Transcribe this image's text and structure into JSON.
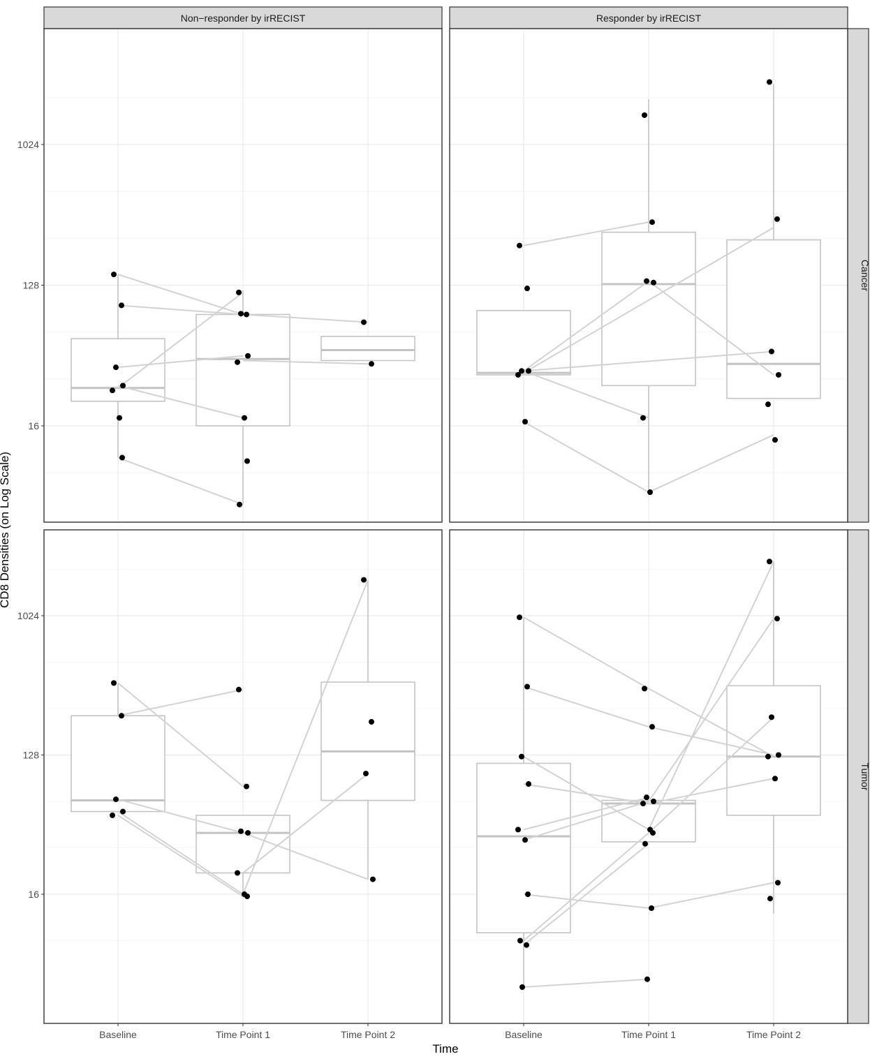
{
  "chart_data": {
    "type": "boxplot-faceted",
    "xlabel": "Time",
    "ylabel": "CD8 Densities (on Log Scale)",
    "y_scale": "log2",
    "ylim": [
      4,
      3200
    ],
    "y_ticks": [
      16,
      128,
      1024
    ],
    "categories": [
      "Baseline",
      "Time Point 1",
      "Time Point 2"
    ],
    "facet_columns": [
      "Non−responder by irRECIST",
      "Responder by irRECIST"
    ],
    "facet_rows": [
      "Cancer",
      "Tumor"
    ],
    "panels": [
      {
        "column": "Non−responder by irRECIST",
        "row": "Cancer",
        "boxes": [
          {
            "category": "Baseline",
            "q1": 23,
            "median": 28,
            "q3": 58,
            "whisker_low": 10,
            "whisker_high": 150
          },
          {
            "category": "Time Point 1",
            "q1": 16,
            "median": 43,
            "q3": 83,
            "whisker_low": 5,
            "whisker_high": 118
          },
          {
            "category": "Time Point 2",
            "q1": 42,
            "median": 49,
            "q3": 60,
            "whisker_low": 42,
            "whisker_high": 60
          }
        ],
        "points": [
          {
            "category": "Baseline",
            "values": [
              150,
              95,
              38,
              29,
              27,
              18,
              10
            ]
          },
          {
            "category": "Time Point 1",
            "values": [
              115,
              83,
              84,
              45,
              41,
              18,
              9.5,
              5
            ]
          },
          {
            "category": "Time Point 2",
            "values": [
              74,
              40
            ]
          }
        ],
        "paired_lines": [
          [
            "Baseline",
            150,
            "Time Point 1",
            83
          ],
          [
            "Baseline",
            95,
            "Time Point 1",
            83
          ],
          [
            "Baseline",
            38,
            "Time Point 1",
            45
          ],
          [
            "Baseline",
            29,
            "Time Point 1",
            18
          ],
          [
            "Baseline",
            28,
            "Time Point 1",
            115
          ],
          [
            "Baseline",
            10,
            "Time Point 1",
            5
          ],
          [
            "Time Point 1",
            83,
            "Time Point 2",
            74
          ],
          [
            "Time Point 1",
            42,
            "Time Point 2",
            40
          ]
        ]
      },
      {
        "column": "Responder by irRECIST",
        "row": "Cancer",
        "boxes": [
          {
            "category": "Baseline",
            "q1": 34,
            "median": 35,
            "q3": 88,
            "whisker_low": 34,
            "whisker_high": 88
          },
          {
            "category": "Time Point 1",
            "q1": 29,
            "median": 130,
            "q3": 280,
            "whisker_low": 6,
            "whisker_high": 2000
          },
          {
            "category": "Time Point 2",
            "q1": 24,
            "median": 40,
            "q3": 250,
            "whisker_low": 24,
            "whisker_high": 2500
          }
        ],
        "points": [
          {
            "category": "Baseline",
            "values": [
              230,
              122,
              36,
              36,
              34,
              17
            ]
          },
          {
            "category": "Time Point 1",
            "values": [
              1580,
              325,
              136,
              133,
              18,
              6
            ]
          },
          {
            "category": "Time Point 2",
            "values": [
              2580,
              340,
              48,
              34,
              22,
              13
            ]
          }
        ],
        "paired_lines": [
          [
            "Baseline",
            230,
            "Time Point 1",
            325
          ],
          [
            "Baseline",
            36,
            "Time Point 1",
            136
          ],
          [
            "Baseline",
            36,
            "Time Point 1",
            18
          ],
          [
            "Baseline",
            17,
            "Time Point 1",
            6
          ],
          [
            "Time Point 1",
            136,
            "Time Point 2",
            34
          ],
          [
            "Time Point 1",
            6,
            "Time Point 2",
            14
          ],
          [
            "Baseline",
            36,
            "Time Point 2",
            48
          ],
          [
            "Baseline",
            35,
            "Time Point 2",
            300
          ]
        ]
      },
      {
        "column": "Non−responder by irRECIST",
        "row": "Tumor",
        "boxes": [
          {
            "category": "Baseline",
            "q1": 55,
            "median": 65,
            "q3": 230,
            "whisker_low": 55,
            "whisker_high": 370
          },
          {
            "category": "Time Point 1",
            "q1": 22,
            "median": 40,
            "q3": 52,
            "whisker_low": 16,
            "whisker_high": 52
          },
          {
            "category": "Time Point 2",
            "q1": 65,
            "median": 135,
            "q3": 380,
            "whisker_low": 20,
            "whisker_high": 1750
          }
        ],
        "points": [
          {
            "category": "Baseline",
            "values": [
              375,
              230,
              66,
              55,
              52
            ]
          },
          {
            "category": "Time Point 1",
            "values": [
              340,
              80,
              41,
              40,
              22,
              16,
              15.5
            ]
          },
          {
            "category": "Time Point 2",
            "values": [
              1750,
              210,
              97,
              20
            ]
          }
        ],
        "paired_lines": [
          [
            "Baseline",
            375,
            "Time Point 1",
            80
          ],
          [
            "Baseline",
            230,
            "Time Point 1",
            340
          ],
          [
            "Baseline",
            66,
            "Time Point 1",
            40
          ],
          [
            "Baseline",
            55,
            "Time Point 1",
            16
          ],
          [
            "Baseline",
            52,
            "Time Point 1",
            15.5
          ],
          [
            "Time Point 1",
            40,
            "Time Point 2",
            20
          ],
          [
            "Time Point 1",
            16,
            "Time Point 2",
            1750
          ],
          [
            "Time Point 1",
            22,
            "Time Point 2",
            97
          ]
        ]
      },
      {
        "column": "Responder by irRECIST",
        "row": "Tumor",
        "boxes": [
          {
            "category": "Baseline",
            "q1": 9,
            "median": 38,
            "q3": 113,
            "whisker_low": 4,
            "whisker_high": 1000
          },
          {
            "category": "Time Point 1",
            "q1": 35,
            "median": 62,
            "q3": 65,
            "whisker_low": 35,
            "whisker_high": 65
          },
          {
            "category": "Time Point 2",
            "q1": 52,
            "median": 125,
            "q3": 360,
            "whisker_low": 12,
            "whisker_high": 2300
          }
        ],
        "points": [
          {
            "category": "Baseline",
            "values": [
              1000,
              355,
              125,
              83,
              42,
              36,
              16,
              8,
              7.5,
              4
            ]
          },
          {
            "category": "Time Point 1",
            "values": [
              345,
              195,
              68,
              64,
              62,
              42,
              40,
              34,
              13,
              4.5
            ]
          },
          {
            "category": "Time Point 2",
            "values": [
              2300,
              980,
              225,
              128,
              125,
              90,
              19,
              15
            ]
          }
        ],
        "paired_lines": [
          [
            "Baseline",
            1000,
            "Time Point 1",
            345
          ],
          [
            "Baseline",
            355,
            "Time Point 1",
            195
          ],
          [
            "Baseline",
            125,
            "Time Point 1",
            42
          ],
          [
            "Baseline",
            83,
            "Time Point 1",
            62
          ],
          [
            "Baseline",
            42,
            "Time Point 1",
            68
          ],
          [
            "Baseline",
            36,
            "Time Point 1",
            64
          ],
          [
            "Baseline",
            16,
            "Time Point 1",
            13
          ],
          [
            "Baseline",
            8,
            "Time Point 1",
            40
          ],
          [
            "Baseline",
            7.5,
            "Time Point 1",
            34
          ],
          [
            "Baseline",
            4,
            "Time Point 1",
            4.5
          ],
          [
            "Time Point 1",
            345,
            "Time Point 2",
            125
          ],
          [
            "Time Point 1",
            195,
            "Time Point 2",
            128
          ],
          [
            "Time Point 1",
            64,
            "Time Point 2",
            980
          ],
          [
            "Time Point 1",
            62,
            "Time Point 2",
            90
          ],
          [
            "Time Point 1",
            42,
            "Time Point 2",
            2300
          ],
          [
            "Time Point 1",
            40,
            "Time Point 2",
            225
          ],
          [
            "Time Point 1",
            13,
            "Time Point 2",
            19
          ]
        ]
      }
    ]
  }
}
